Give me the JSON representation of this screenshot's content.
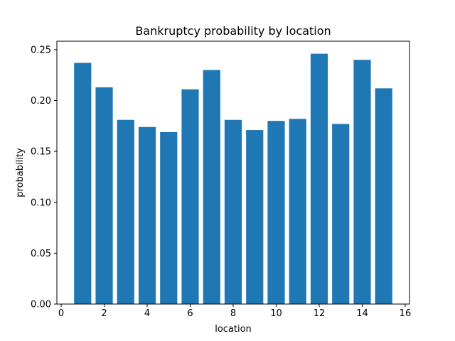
{
  "chart_data": {
    "type": "bar",
    "title": "Bankruptcy probability by location",
    "xlabel": "location",
    "ylabel": "probability",
    "x": [
      1,
      2,
      3,
      4,
      5,
      6,
      7,
      8,
      9,
      10,
      11,
      12,
      13,
      14,
      15
    ],
    "values": [
      0.237,
      0.213,
      0.181,
      0.174,
      0.169,
      0.211,
      0.23,
      0.181,
      0.171,
      0.18,
      0.182,
      0.246,
      0.177,
      0.24,
      0.212
    ],
    "xlim": [
      -0.2,
      16.2
    ],
    "ylim": [
      0,
      0.2583
    ],
    "xticks": [
      0,
      2,
      4,
      6,
      8,
      10,
      12,
      14,
      16
    ],
    "xtick_labels": [
      "0",
      "2",
      "4",
      "6",
      "8",
      "10",
      "12",
      "14",
      "16"
    ],
    "yticks": [
      0,
      0.05,
      0.1,
      0.15,
      0.2,
      0.25
    ],
    "ytick_labels": [
      "0.00",
      "0.05",
      "0.10",
      "0.15",
      "0.20",
      "0.25"
    ],
    "bar_color": "#1f77b4",
    "grid": false,
    "legend": "none"
  }
}
